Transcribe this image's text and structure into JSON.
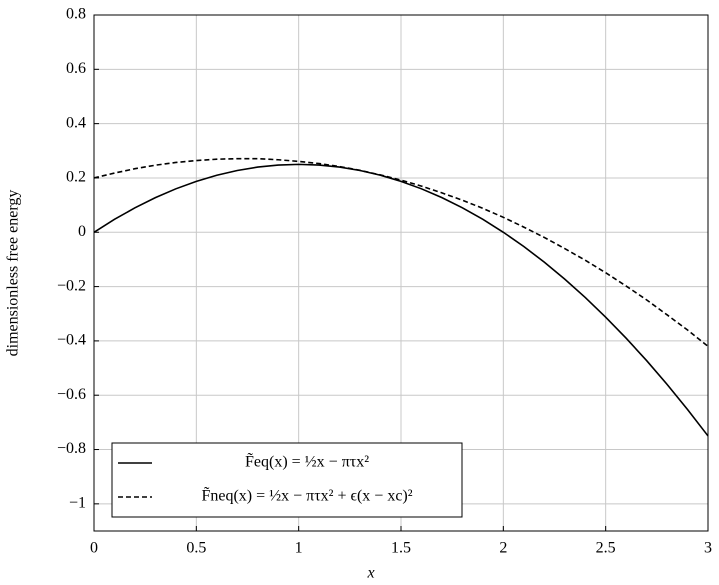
{
  "chart_data": {
    "type": "line",
    "x_label": "x",
    "y_label": "dimensionless free energy",
    "x": [
      0,
      0.1,
      0.2,
      0.3,
      0.4,
      0.5,
      0.6,
      0.7,
      0.8,
      0.9,
      1,
      1.1,
      1.2,
      1.3,
      1.4,
      1.5,
      1.6,
      1.7,
      1.8,
      1.9,
      2,
      2.1,
      2.2,
      2.3,
      2.4,
      2.5,
      2.6,
      2.7,
      2.8,
      2.9,
      3
    ],
    "series": [
      {
        "name": "F̃eq(x) = ½x − πτx²",
        "color": "#000000",
        "dash": "solid",
        "values": [
          0,
          0.0475,
          0.09,
          0.1275,
          0.16,
          0.1875,
          0.21,
          0.2275,
          0.24,
          0.2475,
          0.25,
          0.2475,
          0.24,
          0.2275,
          0.21,
          0.1875,
          0.16,
          0.1275,
          0.09,
          0.0475,
          0,
          -0.0525,
          -0.11,
          -0.1725,
          -0.24,
          -0.3125,
          -0.39,
          -0.4725,
          -0.56,
          -0.6525,
          -0.75
        ]
      },
      {
        "name": "F̃neq(x) = ½x − πτx² + ϵ(x − xc)²",
        "color": "#000000",
        "dash": "dashed",
        "values": [
          0.2,
          0.218,
          0.234,
          0.247,
          0.257,
          0.264,
          0.269,
          0.271,
          0.271,
          0.267,
          0.261,
          0.253,
          0.242,
          0.228,
          0.211,
          0.192,
          0.17,
          0.145,
          0.118,
          0.088,
          0.055,
          0.019,
          -0.019,
          -0.06,
          -0.103,
          -0.149,
          -0.198,
          -0.249,
          -0.304,
          -0.36,
          -0.42
        ]
      }
    ],
    "xlim": [
      0,
      3
    ],
    "xticks": [
      0,
      0.5,
      1,
      1.5,
      2,
      2.5,
      3
    ],
    "ylim": [
      -1.1,
      0.8
    ],
    "yticks": [
      {
        "value": -1,
        "label": "−1"
      },
      {
        "value": -0.8,
        "label": "−0.8"
      },
      {
        "value": -0.6,
        "label": "−0.6"
      },
      {
        "value": -0.4,
        "label": "−0.4"
      },
      {
        "value": -0.2,
        "label": "−0.2"
      },
      0,
      0.2,
      0.4,
      0.6,
      0.8
    ],
    "grid": true,
    "legend_position": "lower left"
  }
}
